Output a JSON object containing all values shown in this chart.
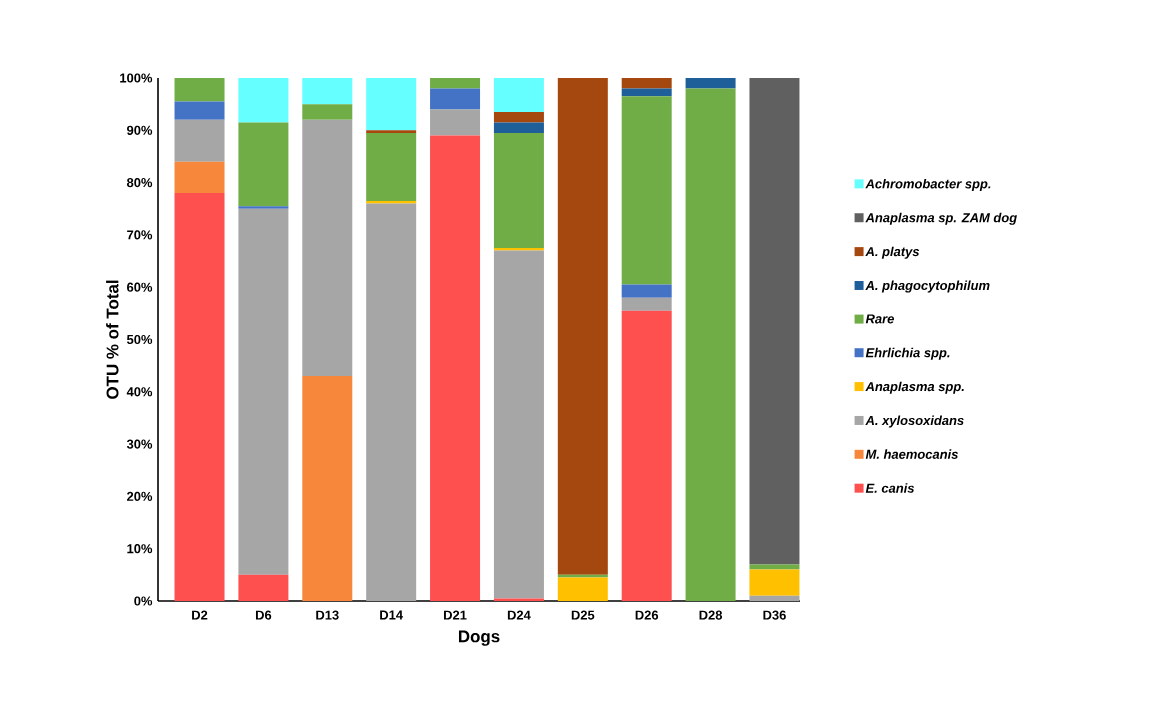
{
  "chart_data": {
    "type": "bar",
    "stacked": true,
    "xlabel": "Dogs",
    "ylabel": "OTU % of Total",
    "categories": [
      "D2",
      "D6",
      "D13",
      "D14",
      "D21",
      "D24",
      "D25",
      "D26",
      "D28",
      "D36"
    ],
    "ylim": [
      0,
      100
    ],
    "yticks": [
      {
        "value": 0,
        "label": "0%"
      },
      {
        "value": 10,
        "label": "10%"
      },
      {
        "value": 20,
        "label": "20%"
      },
      {
        "value": 30,
        "label": "30%"
      },
      {
        "value": 40,
        "label": "40%"
      },
      {
        "value": 50,
        "label": "50%"
      },
      {
        "value": 60,
        "label": "60%"
      },
      {
        "value": 70,
        "label": "70%"
      },
      {
        "value": 80,
        "label": "80%"
      },
      {
        "value": 90,
        "label": "90%"
      },
      {
        "value": 100,
        "label": "100%"
      }
    ],
    "legend": "right",
    "series": [
      {
        "name": "E. canis",
        "color": "#ff5050",
        "values": [
          78,
          5,
          0,
          0,
          89,
          0.5,
          0,
          55.5,
          0,
          0
        ]
      },
      {
        "name": "M. haemocanis",
        "color": "#f7873a",
        "values": [
          6,
          0,
          43,
          0,
          0,
          0,
          0,
          0,
          0,
          0
        ]
      },
      {
        "name": "A. xylosoxidans",
        "color": "#a6a6a6",
        "values": [
          8,
          70,
          49,
          76,
          5,
          66.5,
          0,
          2.5,
          0,
          1
        ]
      },
      {
        "name": "Anaplasma spp.",
        "color": "#ffc000",
        "values": [
          0,
          0,
          0,
          0.5,
          0,
          0.5,
          4.5,
          0,
          0,
          5
        ]
      },
      {
        "name": "Ehrlichia spp.",
        "color": "#4472c4",
        "values": [
          3.5,
          0.5,
          0,
          0,
          4,
          0,
          0,
          2.5,
          0,
          0
        ]
      },
      {
        "name": "Rare",
        "color": "#70ad47",
        "values": [
          4.5,
          16,
          3,
          13,
          2,
          22,
          0.5,
          36,
          98,
          1
        ]
      },
      {
        "name": "A. phagocytophilum",
        "color": "#1f5f99",
        "values": [
          0,
          0,
          0,
          0,
          0,
          2,
          0,
          1.5,
          2,
          0
        ]
      },
      {
        "name": "A. platys",
        "color": "#a5480f",
        "values": [
          0,
          0,
          0,
          0.5,
          0,
          2,
          95,
          2,
          0,
          0
        ]
      },
      {
        "name": "Anaplasma sp. ZAM dog",
        "color": "#606060",
        "values": [
          0,
          0,
          0,
          0,
          0,
          0,
          0,
          0,
          0,
          93
        ]
      },
      {
        "name": "Achromobacter spp.",
        "color": "#66ffff",
        "values": [
          0,
          8.5,
          5,
          10,
          0,
          6.5,
          0,
          0,
          0,
          0
        ]
      }
    ]
  }
}
